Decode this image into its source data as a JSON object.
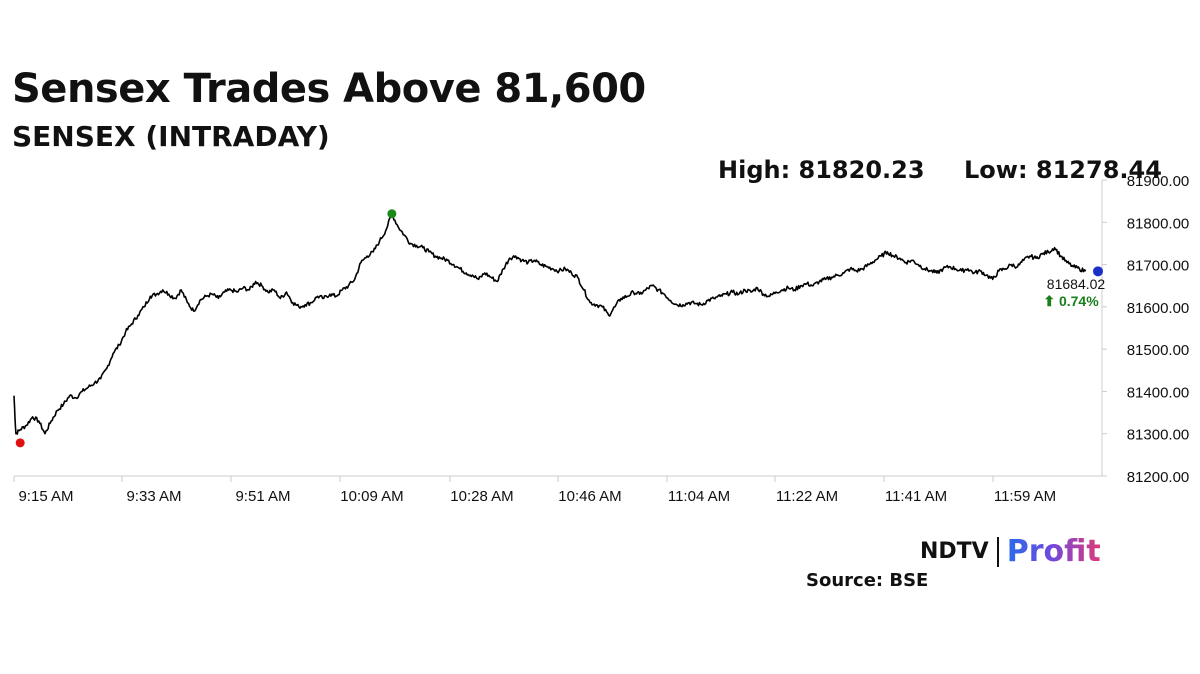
{
  "header": {
    "title": "Sensex Trades Above 81,600",
    "subtitle": "SENSEX (INTRADAY)"
  },
  "stats": {
    "high": "High: 81820.23",
    "low": "Low: 81278.44"
  },
  "last": {
    "price": "81684.02",
    "change": "⬆ 0.74%",
    "change_color": "#1a7f1a"
  },
  "colors": {
    "line": "#000000",
    "low_marker": "#e01010",
    "high_marker": "#1a8a1a",
    "last_marker": "#1e2fc8",
    "axis": "#cccccc"
  },
  "branding": {
    "logo_main": "NDTV",
    "logo_sub": "Profit",
    "source": "Source: BSE"
  },
  "chart_data": {
    "type": "line",
    "title": "Sensex Trades Above 81,600",
    "subtitle": "SENSEX (INTRADAY)",
    "x_unit": "minutes since 9:15 AM",
    "x_ticks": [
      "9:15 AM",
      "9:33 AM",
      "9:51 AM",
      "10:09 AM",
      "10:28 AM",
      "10:46 AM",
      "11:04 AM",
      "11:22 AM",
      "11:41 AM",
      "11:59 AM"
    ],
    "y_ticks": [
      "81900.00",
      "81800.00",
      "81700.00",
      "81600.00",
      "81500.00",
      "81400.00",
      "81300.00",
      "81200.00"
    ],
    "ylim": [
      81200,
      81900
    ],
    "grid": false,
    "series": [
      {
        "name": "SENSEX",
        "points": [
          [
            0,
            81390
          ],
          [
            0.3,
            81300
          ],
          [
            1,
            81310
          ],
          [
            2,
            81320
          ],
          [
            3,
            81340
          ],
          [
            4,
            81330
          ],
          [
            5,
            81300
          ],
          [
            6,
            81330
          ],
          [
            7,
            81355
          ],
          [
            8,
            81370
          ],
          [
            9,
            81390
          ],
          [
            10,
            81385
          ],
          [
            11,
            81400
          ],
          [
            12,
            81410
          ],
          [
            13,
            81420
          ],
          [
            14,
            81430
          ],
          [
            15,
            81455
          ],
          [
            16,
            81490
          ],
          [
            17,
            81510
          ],
          [
            18,
            81540
          ],
          [
            19,
            81560
          ],
          [
            20,
            81580
          ],
          [
            21,
            81600
          ],
          [
            22,
            81625
          ],
          [
            23,
            81630
          ],
          [
            24,
            81640
          ],
          [
            25,
            81630
          ],
          [
            26,
            81620
          ],
          [
            27,
            81640
          ],
          [
            28,
            81610
          ],
          [
            29,
            81590
          ],
          [
            30,
            81615
          ],
          [
            31,
            81625
          ],
          [
            32,
            81630
          ],
          [
            33,
            81620
          ],
          [
            34,
            81635
          ],
          [
            35,
            81640
          ],
          [
            36,
            81635
          ],
          [
            37,
            81645
          ],
          [
            38,
            81640
          ],
          [
            39,
            81660
          ],
          [
            40,
            81650
          ],
          [
            41,
            81635
          ],
          [
            42,
            81640
          ],
          [
            43,
            81620
          ],
          [
            44,
            81635
          ],
          [
            45,
            81610
          ],
          [
            46,
            81600
          ],
          [
            47,
            81605
          ],
          [
            48,
            81610
          ],
          [
            49,
            81625
          ],
          [
            50,
            81620
          ],
          [
            51,
            81630
          ],
          [
            52,
            81625
          ],
          [
            53,
            81640
          ],
          [
            54,
            81650
          ],
          [
            55,
            81665
          ],
          [
            56,
            81705
          ],
          [
            57,
            81720
          ],
          [
            58,
            81730
          ],
          [
            59,
            81755
          ],
          [
            60,
            81780
          ],
          [
            61,
            81820.23
          ],
          [
            62,
            81790
          ],
          [
            63,
            81770
          ],
          [
            64,
            81750
          ],
          [
            65,
            81745
          ],
          [
            66,
            81740
          ],
          [
            67,
            81730
          ],
          [
            68,
            81720
          ],
          [
            69,
            81715
          ],
          [
            70,
            81710
          ],
          [
            71,
            81700
          ],
          [
            72,
            81690
          ],
          [
            73,
            81680
          ],
          [
            74,
            81675
          ],
          [
            75,
            81665
          ],
          [
            76,
            81680
          ],
          [
            77,
            81670
          ],
          [
            78,
            81660
          ],
          [
            79,
            81690
          ],
          [
            80,
            81715
          ],
          [
            81,
            81720
          ],
          [
            82,
            81710
          ],
          [
            83,
            81705
          ],
          [
            84,
            81710
          ],
          [
            85,
            81700
          ],
          [
            86,
            81695
          ],
          [
            87,
            81690
          ],
          [
            88,
            81685
          ],
          [
            89,
            81690
          ],
          [
            90,
            81680
          ],
          [
            91,
            81670
          ],
          [
            92,
            81640
          ],
          [
            93,
            81610
          ],
          [
            94,
            81605
          ],
          [
            95,
            81600
          ],
          [
            96,
            81580
          ],
          [
            97,
            81600
          ],
          [
            98,
            81620
          ],
          [
            99,
            81625
          ],
          [
            100,
            81635
          ],
          [
            101,
            81630
          ],
          [
            102,
            81640
          ],
          [
            103,
            81650
          ],
          [
            104,
            81640
          ],
          [
            105,
            81630
          ],
          [
            106,
            81615
          ],
          [
            107,
            81605
          ],
          [
            108,
            81605
          ],
          [
            109,
            81610
          ],
          [
            110,
            81608
          ],
          [
            111,
            81605
          ],
          [
            112,
            81615
          ],
          [
            113,
            81620
          ],
          [
            114,
            81625
          ],
          [
            115,
            81630
          ],
          [
            116,
            81635
          ],
          [
            117,
            81630
          ],
          [
            118,
            81640
          ],
          [
            119,
            81635
          ],
          [
            120,
            81645
          ],
          [
            121,
            81630
          ],
          [
            122,
            81625
          ],
          [
            123,
            81635
          ],
          [
            124,
            81640
          ],
          [
            125,
            81645
          ],
          [
            126,
            81640
          ],
          [
            127,
            81650
          ],
          [
            128,
            81655
          ],
          [
            129,
            81650
          ],
          [
            130,
            81660
          ],
          [
            131,
            81665
          ],
          [
            132,
            81670
          ],
          [
            133,
            81675
          ],
          [
            134,
            81680
          ],
          [
            135,
            81690
          ],
          [
            136,
            81685
          ],
          [
            137,
            81690
          ],
          [
            138,
            81700
          ],
          [
            139,
            81710
          ],
          [
            140,
            81720
          ],
          [
            141,
            81730
          ],
          [
            142,
            81720
          ],
          [
            143,
            81715
          ],
          [
            144,
            81705
          ],
          [
            145,
            81710
          ],
          [
            146,
            81700
          ],
          [
            147,
            81690
          ],
          [
            148,
            81685
          ],
          [
            149,
            81680
          ],
          [
            150,
            81690
          ],
          [
            151,
            81695
          ],
          [
            152,
            81690
          ],
          [
            153,
            81685
          ],
          [
            154,
            81690
          ],
          [
            155,
            81680
          ],
          [
            156,
            81685
          ],
          [
            157,
            81675
          ],
          [
            158,
            81665
          ],
          [
            159,
            81685
          ],
          [
            160,
            81690
          ],
          [
            161,
            81700
          ],
          [
            162,
            81695
          ],
          [
            163,
            81710
          ],
          [
            164,
            81720
          ],
          [
            165,
            81715
          ],
          [
            166,
            81725
          ],
          [
            167,
            81730
          ],
          [
            168,
            81740
          ],
          [
            169,
            81720
          ],
          [
            170,
            81705
          ],
          [
            171,
            81695
          ],
          [
            172,
            81690
          ],
          [
            173,
            81684.02
          ]
        ]
      }
    ],
    "markers": {
      "low": [
        1,
        81278.44
      ],
      "high": [
        61,
        81820.23
      ],
      "last": [
        175,
        81684.02
      ]
    }
  }
}
